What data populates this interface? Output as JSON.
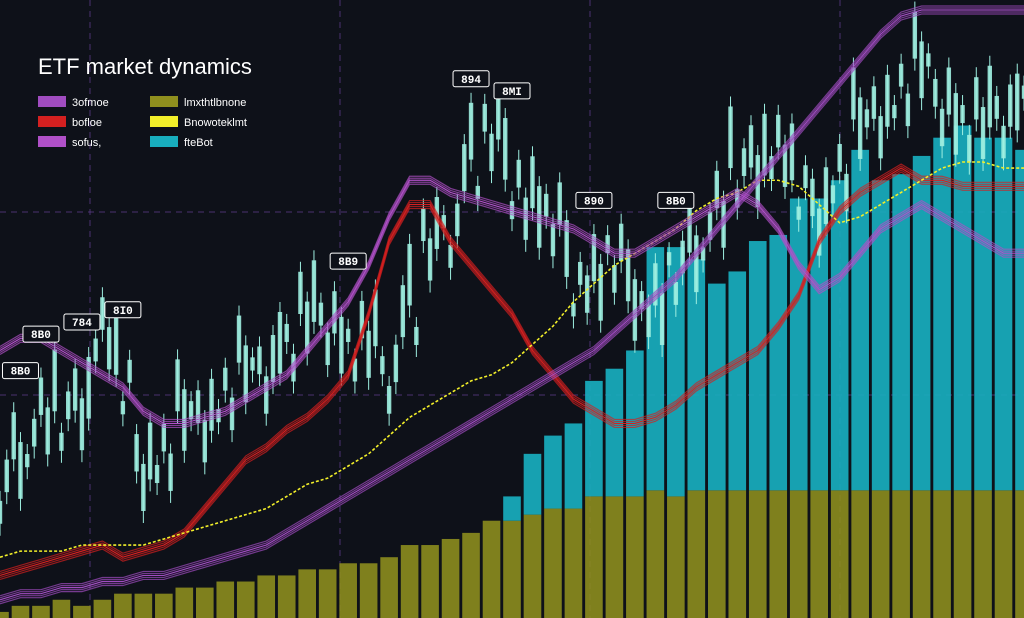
{
  "chart_data": {
    "type": "bar",
    "title": "ETF market dynamics",
    "grid": true,
    "legend_position": "top-left",
    "legend": [
      {
        "label": "3ofmoe",
        "color": "#a04cc0"
      },
      {
        "label": "lmxthtlbnone",
        "color": "#8f8f1e"
      },
      {
        "label": "bofloe",
        "color": "#d42020"
      },
      {
        "label": "Bnowoteklmt",
        "color": "#f2ef2a"
      },
      {
        "label": "sofus,",
        "color": "#b050c8"
      },
      {
        "label": "fteBot",
        "color": "#18aebe"
      }
    ],
    "tags": [
      {
        "text": "894",
        "i": 23
      },
      {
        "text": "784",
        "i": 4
      },
      {
        "text": "8B9",
        "i": 17
      },
      {
        "text": "8B0",
        "i": 33
      },
      {
        "text": "890",
        "i": 29
      },
      {
        "text": "8B0",
        "i": 2
      },
      {
        "text": "8MI",
        "i": 25
      },
      {
        "text": "8B0",
        "i": 1
      },
      {
        "text": "8I0",
        "i": 6
      }
    ],
    "x": [
      0,
      1,
      2,
      3,
      4,
      5,
      6,
      7,
      8,
      9,
      10,
      11,
      12,
      13,
      14,
      15,
      16,
      17,
      18,
      19,
      20,
      21,
      22,
      23,
      24,
      25,
      26,
      27,
      28,
      29,
      30,
      31,
      32,
      33,
      34,
      35,
      36,
      37,
      38,
      39,
      40,
      41,
      42,
      43,
      44,
      45,
      46,
      47,
      48,
      49,
      50
    ],
    "ylim": [
      0,
      100
    ],
    "series": [
      {
        "kind": "bar",
        "color": "#8f8f1e",
        "values": [
          1,
          2,
          2,
          3,
          2,
          3,
          4,
          4,
          4,
          5,
          5,
          6,
          6,
          7,
          7,
          8,
          8,
          9,
          9,
          10,
          12,
          12,
          13,
          14,
          16,
          16,
          17,
          18,
          18,
          20,
          20,
          20,
          21,
          20,
          21,
          21,
          21,
          21,
          21,
          21,
          21,
          21,
          21,
          21,
          21,
          21,
          21,
          21,
          21,
          21,
          21
        ]
      },
      {
        "kind": "bar",
        "color": "#18aebe",
        "values": [
          0,
          0,
          0,
          0,
          0,
          0,
          0,
          0,
          0,
          0,
          0,
          0,
          0,
          0,
          0,
          0,
          0,
          0,
          0,
          0,
          0,
          0,
          0,
          0,
          0,
          4,
          10,
          12,
          14,
          19,
          21,
          24,
          40,
          41,
          38,
          34,
          36,
          41,
          42,
          48,
          48,
          51,
          56,
          51,
          52,
          55,
          58,
          60,
          58,
          58,
          56
        ]
      },
      {
        "kind": "line",
        "color": "#d42020",
        "values": [
          7,
          8,
          9,
          10,
          11,
          12,
          10,
          11,
          12,
          14,
          18,
          22,
          26,
          28,
          31,
          33,
          36,
          40,
          50,
          62,
          68,
          68,
          62,
          58,
          54,
          50,
          44,
          40,
          36,
          34,
          32,
          32,
          33,
          35,
          38,
          40,
          42,
          44,
          48,
          53,
          62,
          67,
          70,
          72,
          74,
          72,
          72,
          71,
          71,
          71,
          71
        ]
      },
      {
        "kind": "line",
        "color": "#f2ef2a",
        "values": [
          10,
          11,
          11,
          11,
          12,
          12,
          12,
          12,
          13,
          14,
          15,
          16,
          17,
          18,
          20,
          22,
          23,
          25,
          27,
          30,
          33,
          35,
          37,
          39,
          40,
          42,
          45,
          48,
          52,
          55,
          58,
          60,
          62,
          64,
          67,
          69,
          70,
          72,
          72,
          71,
          68,
          65,
          66,
          68,
          70,
          72,
          74,
          75,
          75,
          74,
          74
        ]
      },
      {
        "kind": "line",
        "color": "#a04cc0",
        "values": [
          3,
          4,
          4,
          5,
          5,
          6,
          6,
          7,
          7,
          8,
          9,
          10,
          11,
          12,
          14,
          16,
          18,
          20,
          22,
          24,
          26,
          28,
          30,
          32,
          34,
          36,
          38,
          40,
          42,
          44,
          47,
          50,
          53,
          56,
          60,
          64,
          68,
          72,
          76,
          80,
          84,
          88,
          92,
          96,
          99,
          100,
          100,
          100,
          100,
          100,
          100
        ]
      },
      {
        "kind": "line",
        "color": "#b050c8",
        "values": [
          44,
          46,
          46,
          44,
          42,
          40,
          38,
          34,
          32,
          32,
          33,
          34,
          36,
          38,
          40,
          44,
          48,
          52,
          58,
          66,
          72,
          72,
          70,
          69,
          68,
          67,
          66,
          65,
          64,
          62,
          60,
          60,
          62,
          64,
          66,
          68,
          70,
          68,
          64,
          58,
          54,
          56,
          60,
          64,
          66,
          68,
          66,
          64,
          62,
          60,
          60
        ]
      },
      {
        "kind": "candles",
        "color": "#9eefe1",
        "values": [
          22,
          30,
          36,
          34,
          38,
          50,
          40,
          28,
          30,
          34,
          36,
          40,
          42,
          44,
          48,
          50,
          52,
          48,
          46,
          44,
          54,
          62,
          68,
          78,
          80,
          76,
          70,
          66,
          60,
          58,
          60,
          56,
          54,
          58,
          64,
          70,
          74,
          78,
          80,
          72,
          70,
          76,
          82,
          86,
          90,
          92,
          88,
          84,
          82,
          86,
          88
        ]
      }
    ]
  }
}
